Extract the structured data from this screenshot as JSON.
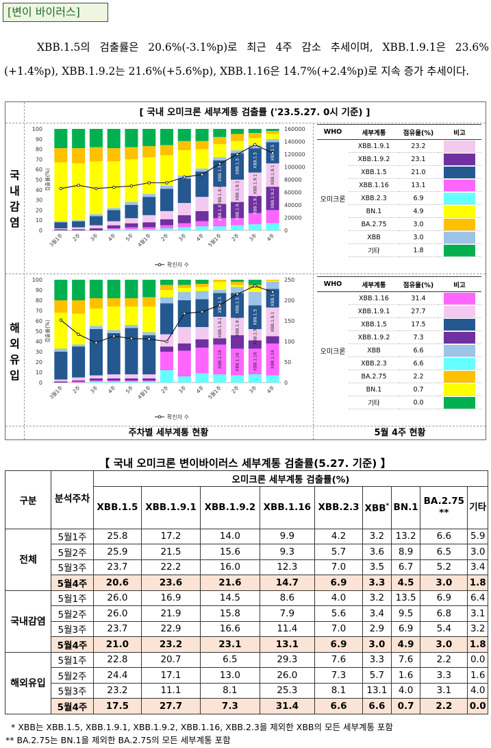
{
  "section_label": "[변이 바이러스]",
  "intro_text": "XBB.1.5의 검출률은 20.6%(-3.1%p)로 최근 4주 감소 추세이며, XBB.1.9.1은 23.6%(+1.4%p), XBB.1.9.2는 21.6%(+5.6%p), XBB.1.16은 14.7%(+2.4%p)로 지속 증가 추세이다.",
  "figure": {
    "title": "[ 국내 오미크론 세부계통 검출률 ('23.5.27. 0시 기준) ]",
    "row_domestic": "국내감염",
    "row_overseas": "해외유입",
    "caption_left": "주차별 세부계통 현황",
    "caption_right": "5월 4주 현황",
    "legend_header": {
      "who": "WHO",
      "lineage": "세부계통",
      "share": "점유율(%)",
      "note": "비고"
    },
    "legend_who": "오미크론",
    "legend_domestic": [
      {
        "name": "XBB.1.9.1",
        "value": "23.2",
        "color": "#f3c9f0"
      },
      {
        "name": "XBB.1.9.2",
        "value": "23.1",
        "color": "#7030a0"
      },
      {
        "name": "XBB.1.5",
        "value": "21.0",
        "color": "#24588f"
      },
      {
        "name": "XBB.1.16",
        "value": "13.1",
        "color": "#ff66ff"
      },
      {
        "name": "XBB.2.3",
        "value": "6.9",
        "color": "#66ffff"
      },
      {
        "name": "BN.1",
        "value": "4.9",
        "color": "#ffff00"
      },
      {
        "name": "BA.2.75",
        "value": "3.0",
        "color": "#ffc000"
      },
      {
        "name": "XBB",
        "value": "3.0",
        "color": "#9dc3e6"
      },
      {
        "name": "기타",
        "value": "1.8",
        "color": "#00b050"
      }
    ],
    "legend_overseas": [
      {
        "name": "XBB.1.16",
        "value": "31.4",
        "color": "#ff66ff"
      },
      {
        "name": "XBB.1.9.1",
        "value": "27.7",
        "color": "#f3c9f0"
      },
      {
        "name": "XBB.1.5",
        "value": "17.5",
        "color": "#24588f"
      },
      {
        "name": "XBB.1.9.2",
        "value": "7.3",
        "color": "#7030a0"
      },
      {
        "name": "XBB",
        "value": "6.6",
        "color": "#9dc3e6"
      },
      {
        "name": "XBB.2.3",
        "value": "6.6",
        "color": "#66ffff"
      },
      {
        "name": "BA.2.75",
        "value": "2.2",
        "color": "#ffc000"
      },
      {
        "name": "BN.1",
        "value": "0.7",
        "color": "#ffff00"
      },
      {
        "name": "기타",
        "value": "0.0",
        "color": "#00b050"
      }
    ]
  },
  "chart_data": [
    {
      "type": "bar",
      "stacked": true,
      "title": "국내감염",
      "categories": [
        "3월1주",
        "2주",
        "3주",
        "4주",
        "5주",
        "4월1주",
        "2주",
        "3주",
        "4주",
        "5월1주",
        "2주",
        "3주",
        "4주"
      ],
      "ylabel": "검출률(%)",
      "ylim": [
        0,
        100
      ],
      "yticks": [
        0,
        10,
        20,
        30,
        40,
        50,
        60,
        70,
        80,
        90,
        100
      ],
      "y2lim": [
        0,
        160000
      ],
      "y2ticks": [
        0,
        20000,
        40000,
        60000,
        80000,
        100000,
        120000,
        140000,
        160000
      ],
      "line_series_name": "확진자 수",
      "line_values": [
        66000,
        71000,
        66000,
        68000,
        70000,
        75000,
        75000,
        84000,
        88000,
        105000,
        120000,
        135000,
        122000
      ],
      "series": [
        {
          "name": "XBB.2.3",
          "color": "#66ffff",
          "values": [
            0,
            0,
            0,
            1,
            1,
            1,
            2,
            3,
            4,
            4,
            5,
            6,
            7
          ]
        },
        {
          "name": "XBB.1.16",
          "color": "#ff66ff",
          "values": [
            0,
            0,
            0,
            1,
            2,
            2,
            3,
            4,
            5,
            8,
            7,
            11,
            13
          ]
        },
        {
          "name": "XBB.1.9.2",
          "color": "#7030a0",
          "values": [
            1,
            1,
            2,
            3,
            4,
            5,
            6,
            8,
            10,
            14,
            16,
            17,
            23
          ]
        },
        {
          "name": "XBB.1.9.1",
          "color": "#f3c9f0",
          "values": [
            1,
            2,
            3,
            4,
            5,
            7,
            8,
            12,
            14,
            17,
            22,
            23,
            23
          ]
        },
        {
          "name": "XBB.1.5",
          "color": "#24588f",
          "values": [
            6,
            6,
            9,
            11,
            13,
            18,
            22,
            24,
            25,
            26,
            26,
            24,
            21
          ]
        },
        {
          "name": "XBB",
          "color": "#9dc3e6",
          "values": [
            1,
            1,
            2,
            2,
            3,
            3,
            3,
            3,
            3,
            3,
            3,
            3,
            3
          ]
        },
        {
          "name": "BN.1",
          "color": "#ffff00",
          "values": [
            58,
            56,
            52,
            46,
            42,
            36,
            30,
            25,
            19,
            13,
            9,
            7,
            5
          ]
        },
        {
          "name": "BA.2.75",
          "color": "#ffc000",
          "values": [
            14,
            15,
            14,
            13,
            12,
            11,
            10,
            9,
            8,
            7,
            7,
            5,
            3
          ]
        },
        {
          "name": "기타",
          "color": "#00b050",
          "values": [
            19,
            19,
            18,
            19,
            18,
            17,
            16,
            12,
            12,
            8,
            5,
            4,
            2
          ]
        }
      ],
      "bar_annotations": [
        {
          "category_index": 9,
          "labels": [
            "XBB.1.9.2",
            "XBB.1.9.1",
            "XBB.1.5"
          ]
        },
        {
          "category_index": 10,
          "labels": [
            "XBB.1.9.2",
            "XBB.1.9.1",
            "XBB.1.5"
          ]
        },
        {
          "category_index": 11,
          "labels": [
            "XBB.1.9.2",
            "XBB.1.9.1",
            "XBB.1.5"
          ]
        },
        {
          "category_index": 12,
          "labels": [
            "XBB.1.9.2",
            "XBB.1.9.1",
            "XBB.1.5"
          ]
        }
      ]
    },
    {
      "type": "bar",
      "stacked": true,
      "title": "해외유입",
      "categories": [
        "3월1주",
        "2주",
        "3주",
        "4주",
        "5주",
        "4월1주",
        "2주",
        "3주",
        "4주",
        "5월1주",
        "2주",
        "3주",
        "4주"
      ],
      "ylabel": "검출률(%)",
      "ylim": [
        0,
        100
      ],
      "yticks": [
        0,
        10,
        20,
        30,
        40,
        50,
        60,
        70,
        80,
        90,
        100
      ],
      "y2lim": [
        0,
        250
      ],
      "y2ticks": [
        0,
        50,
        100,
        150,
        200,
        250
      ],
      "line_series_name": "확진자 수",
      "line_values": [
        152,
        117,
        97,
        113,
        107,
        106,
        100,
        168,
        172,
        188,
        215,
        235,
        220
      ],
      "series": [
        {
          "name": "XBB.2.3",
          "color": "#66ffff",
          "values": [
            0,
            0,
            1,
            1,
            1,
            1,
            12,
            6,
            9,
            8,
            7,
            8,
            7
          ]
        },
        {
          "name": "XBB.1.16",
          "color": "#ff66ff",
          "values": [
            0,
            1,
            1,
            1,
            1,
            1,
            18,
            25,
            25,
            29,
            26,
            25,
            31
          ]
        },
        {
          "name": "XBB.1.9.2",
          "color": "#7030a0",
          "values": [
            1,
            1,
            2,
            2,
            2,
            2,
            5,
            7,
            8,
            6,
            13,
            8,
            7
          ]
        },
        {
          "name": "XBB.1.9.1",
          "color": "#f3c9f0",
          "values": [
            2,
            3,
            3,
            4,
            4,
            4,
            12,
            16,
            12,
            21,
            17,
            11,
            28
          ]
        },
        {
          "name": "XBB.1.5",
          "color": "#24588f",
          "values": [
            27,
            30,
            45,
            40,
            45,
            38,
            30,
            26,
            27,
            23,
            24,
            23,
            18
          ]
        },
        {
          "name": "XBB",
          "color": "#9dc3e6",
          "values": [
            3,
            2,
            3,
            3,
            3,
            3,
            6,
            8,
            8,
            3,
            6,
            13,
            7
          ]
        },
        {
          "name": "BN.1",
          "color": "#ffff00",
          "values": [
            35,
            30,
            17,
            23,
            18,
            25,
            7,
            4,
            4,
            8,
            2,
            4,
            1
          ]
        },
        {
          "name": "BA.2.75",
          "color": "#ffc000",
          "values": [
            12,
            13,
            10,
            8,
            8,
            9,
            5,
            3,
            3,
            2,
            3,
            3,
            1
          ]
        },
        {
          "name": "기타",
          "color": "#00b050",
          "values": [
            20,
            20,
            18,
            18,
            18,
            17,
            5,
            5,
            4,
            0,
            2,
            5,
            0
          ]
        }
      ],
      "bar_annotations": [
        {
          "category_index": 9,
          "labels": [
            "XBB.1.16",
            "XBB.1.9.1",
            "XBB.1.5"
          ]
        },
        {
          "category_index": 10,
          "labels": [
            "XBB.1.16",
            "XBB.1.9.1",
            "XBB.1.5"
          ]
        },
        {
          "category_index": 11,
          "labels": [
            "XBB.1.16",
            "XBB.1.9.1",
            "XBB.1.5"
          ]
        },
        {
          "category_index": 12,
          "labels": [
            "XBB.1.16",
            "XBB.1.9.1",
            "XBB.1.5"
          ]
        }
      ]
    },
    {
      "type": "table",
      "title": "【 국내 오미크론 변이바이러스 세부계통 검출률(5.27. 기준) 】",
      "header": {
        "group": "구분",
        "week": "분석주차",
        "super": "오미크론 세부계통 검출률(%)"
      },
      "columns": [
        "XBB.1.5",
        "XBB.1.9.1",
        "XBB.1.9.2",
        "XBB.1.16",
        "XBB.2.3",
        "XBB*",
        "BN.1",
        "BA.2.75 **",
        "기타"
      ],
      "groups": [
        {
          "name": "전체",
          "rows": [
            {
              "week": "5월1주",
              "values": [
                "25.8",
                "17.2",
                "14.0",
                "9.9",
                "4.2",
                "3.2",
                "13.2",
                "6.6",
                "5.9"
              ]
            },
            {
              "week": "5월2주",
              "values": [
                "25.9",
                "21.5",
                "15.6",
                "9.3",
                "5.7",
                "3.6",
                "8.9",
                "6.5",
                "3.0"
              ]
            },
            {
              "week": "5월3주",
              "values": [
                "23.7",
                "22.2",
                "16.0",
                "12.3",
                "7.0",
                "3.5",
                "6.7",
                "5.2",
                "3.4"
              ]
            },
            {
              "week": "5월4주",
              "values": [
                "20.6",
                "23.6",
                "21.6",
                "14.7",
                "6.9",
                "3.3",
                "4.5",
                "3.0",
                "1.8"
              ]
            }
          ]
        },
        {
          "name": "국내감염",
          "rows": [
            {
              "week": "5월1주",
              "values": [
                "26.0",
                "16.9",
                "14.5",
                "8.6",
                "4.0",
                "3.2",
                "13.5",
                "6.9",
                "6.4"
              ]
            },
            {
              "week": "5월2주",
              "values": [
                "26.0",
                "21.9",
                "15.8",
                "7.9",
                "5.6",
                "3.4",
                "9.5",
                "6.8",
                "3.1"
              ]
            },
            {
              "week": "5월3주",
              "values": [
                "23.7",
                "22.9",
                "16.6",
                "11.4",
                "7.0",
                "2.9",
                "6.9",
                "5.4",
                "3.2"
              ]
            },
            {
              "week": "5월4주",
              "values": [
                "21.0",
                "23.2",
                "23.1",
                "13.1",
                "6.9",
                "3.0",
                "4.9",
                "3.0",
                "1.8"
              ]
            }
          ]
        },
        {
          "name": "해외유입",
          "rows": [
            {
              "week": "5월1주",
              "values": [
                "22.8",
                "20.7",
                "6.5",
                "29.3",
                "7.6",
                "3.3",
                "7.6",
                "2.2",
                "0.0"
              ]
            },
            {
              "week": "5월2주",
              "values": [
                "24.4",
                "17.1",
                "13.0",
                "26.0",
                "7.3",
                "5.7",
                "1.6",
                "3.3",
                "1.6"
              ]
            },
            {
              "week": "5월3주",
              "values": [
                "23.2",
                "11.1",
                "8.1",
                "25.3",
                "8.1",
                "13.1",
                "4.0",
                "3.1",
                "4.0"
              ]
            },
            {
              "week": "5월4주",
              "values": [
                "17.5",
                "27.7",
                "7.3",
                "31.4",
                "6.6",
                "6.6",
                "0.7",
                "2.2",
                "0.0"
              ]
            }
          ]
        }
      ]
    }
  ],
  "notes": [
    "* XBB는 XBB.1.5, XBB.1.9.1, XBB.1.9.2, XBB.1.16, XBB.2.3을 제외한 XBB의 모든 세부계통 포함",
    "** BA.2.75는 BN.1을 제외한 BA.2.75의 모든 세부계통 포함"
  ]
}
